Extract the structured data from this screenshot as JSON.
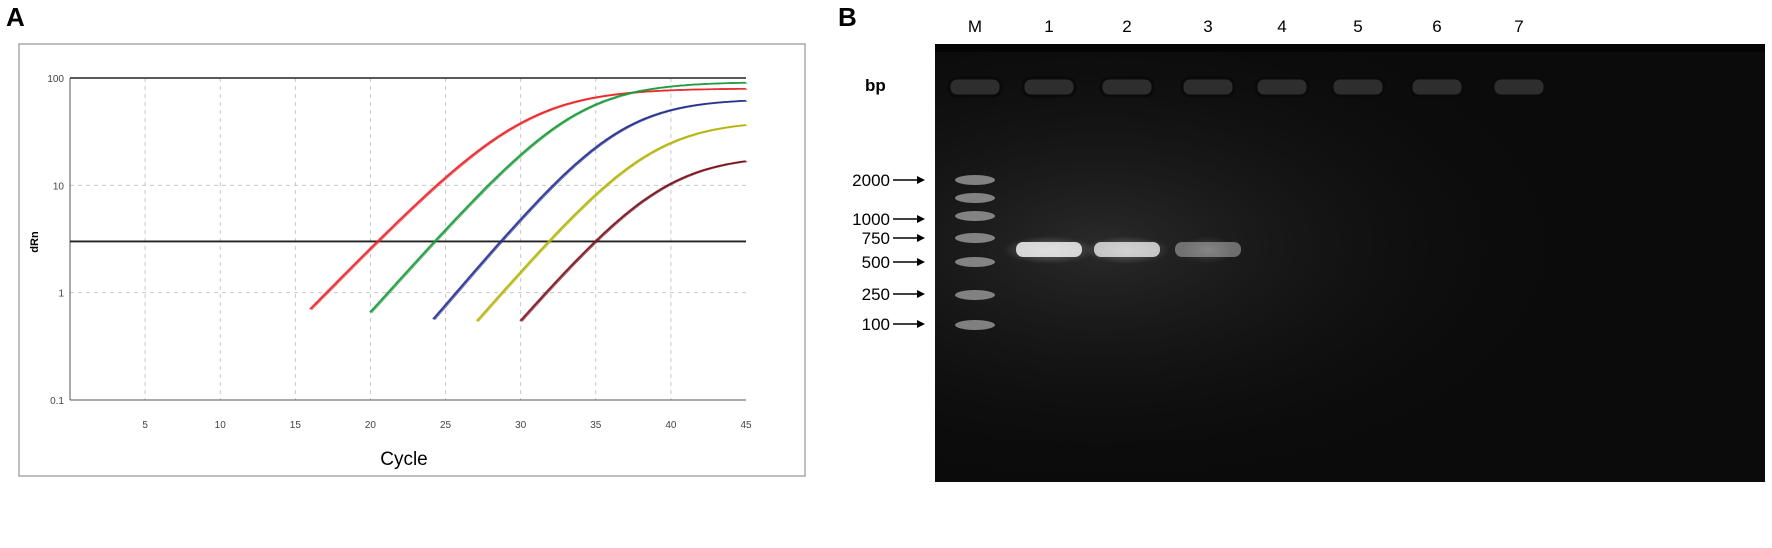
{
  "panel_a": {
    "label": "A",
    "chart_data": {
      "type": "line",
      "title": "",
      "xlabel": "Cycle",
      "ylabel": "dRn",
      "xlim": [
        0,
        45
      ],
      "ylim": [
        0.1,
        100
      ],
      "yscale": "log",
      "x_ticks": [
        "5",
        "10",
        "15",
        "20",
        "25",
        "30",
        "35",
        "40",
        "45"
      ],
      "y_ticks": [
        "0.1",
        "1",
        "10",
        "100"
      ],
      "grid": true,
      "threshold": 3.0,
      "threshold_color": "#222222",
      "series": [
        {
          "color": "#e8282b",
          "start": 16,
          "plateau": 80,
          "ct": 20.5,
          "slope": 0.33
        },
        {
          "color": "#1f9a3c",
          "start": 20,
          "plateau": 92,
          "ct": 24.3,
          "slope": 0.36
        },
        {
          "color": "#27318f",
          "start": 24.2,
          "plateau": 64,
          "ct": 28.7,
          "slope": 0.38
        },
        {
          "color": "#b5b40c",
          "start": 27.1,
          "plateau": 40,
          "ct": 31.9,
          "slope": 0.37
        },
        {
          "color": "#7a1420",
          "start": 30,
          "plateau": 19,
          "ct": 35.0,
          "slope": 0.37
        }
      ]
    }
  },
  "panel_b": {
    "label": "B",
    "unit_label": "bp",
    "lane_labels": [
      "M",
      "1",
      "2",
      "3",
      "4",
      "5",
      "6",
      "7"
    ],
    "marker_sizes": [
      "2000",
      "1000",
      "750",
      "500",
      "250",
      "100"
    ],
    "band_intensity": {
      "1": 1.0,
      "2": 0.9,
      "3": 0.45,
      "4": 0.0,
      "5": 0.0,
      "6": 0.0,
      "7": 0.0
    },
    "gel_color": "#0b0b0b"
  }
}
